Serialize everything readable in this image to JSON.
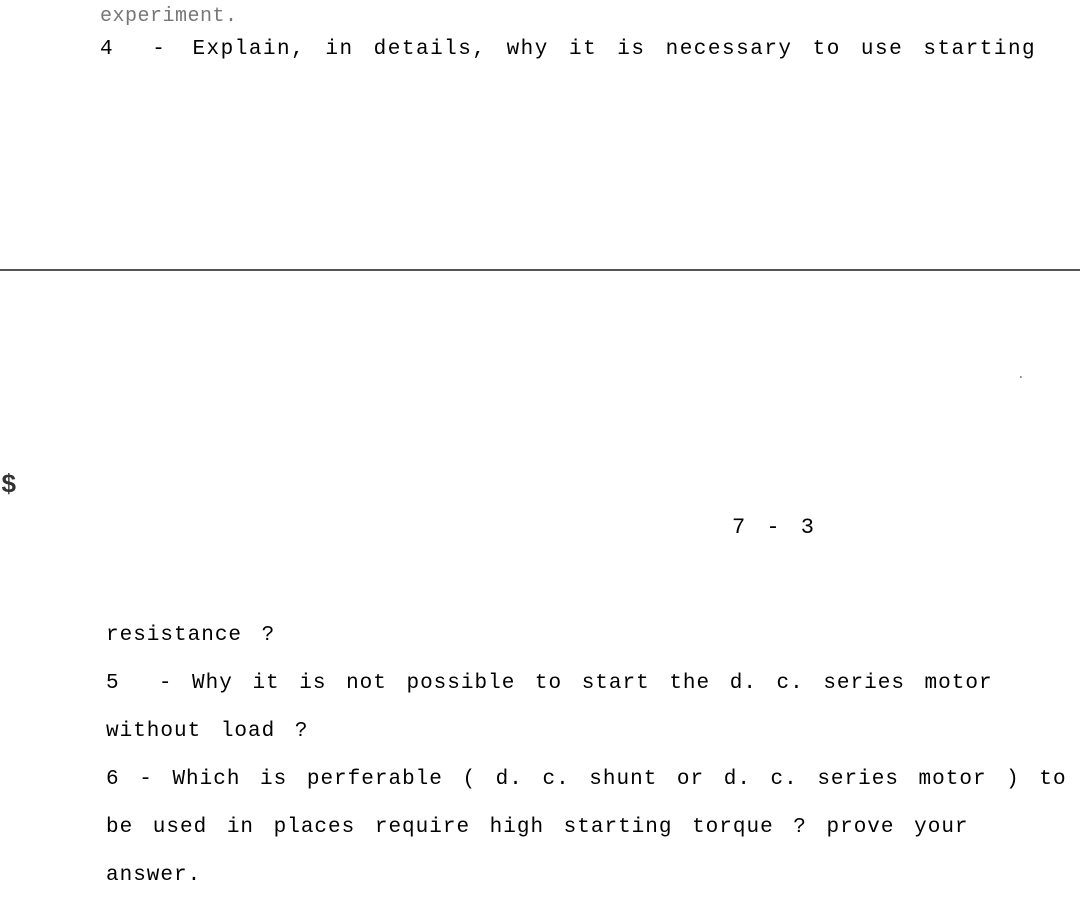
{
  "top_partial": "experiment.",
  "q4": {
    "number": "4",
    "dash": "-",
    "text": "Explain,  in details,  why it is necessary to  use  starting"
  },
  "page_number": "7 - 3",
  "dollar": "$",
  "lower": {
    "line1": "resistance ?",
    "line2_num": "5",
    "line2_dash": "-",
    "line2_text": "Why  it  is not possible to start the  d.  c.  series  motor",
    "line3": "without load ?",
    "line4_num": "6",
    "line4_dash": "-",
    "line4_text": "Which is perferable ( d.  c. shunt or d. c. series motor ) to",
    "line5": "be  used  in places require high starting  torque  ?  prove  your",
    "line6": "answer."
  },
  "colors": {
    "background": "#ffffff",
    "text": "#000000",
    "faded_text": "#777777",
    "hr": "#555555"
  },
  "typography": {
    "font_family": "Courier New",
    "body_fontsize": 21,
    "letter_spacing": 1,
    "word_spacing": 6,
    "line_height": 48
  }
}
